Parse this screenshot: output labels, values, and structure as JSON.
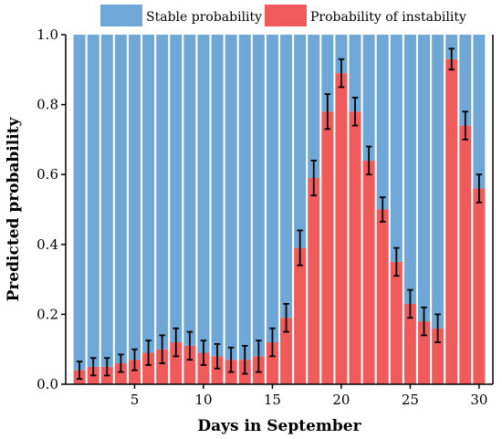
{
  "chart_data": {
    "type": "bar",
    "stacked": true,
    "xlabel": "Days in September",
    "ylabel": "Predicted probability",
    "ylim": [
      0,
      1.0
    ],
    "xlim": [
      0,
      31
    ],
    "xticks": [
      5,
      10,
      15,
      20,
      25,
      30
    ],
    "yticks": [
      0.0,
      0.2,
      0.4,
      0.6,
      0.8,
      1.0
    ],
    "ytick_labels": [
      "0.0",
      "0.2",
      "0.4",
      "0.6",
      "0.8",
      "1.0"
    ],
    "legend_placement": "top",
    "grid": false,
    "x": [
      1,
      2,
      3,
      4,
      5,
      6,
      7,
      8,
      9,
      10,
      11,
      12,
      13,
      14,
      15,
      16,
      17,
      18,
      19,
      20,
      21,
      22,
      23,
      24,
      25,
      26,
      27,
      28,
      29,
      30
    ],
    "series": [
      {
        "name": "Probability of instability",
        "color": "#ef5b5b",
        "values": [
          0.04,
          0.05,
          0.05,
          0.06,
          0.07,
          0.09,
          0.1,
          0.12,
          0.11,
          0.09,
          0.08,
          0.07,
          0.07,
          0.08,
          0.12,
          0.19,
          0.39,
          0.59,
          0.78,
          0.89,
          0.78,
          0.64,
          0.5,
          0.35,
          0.23,
          0.18,
          0.16,
          0.93,
          0.74,
          0.56
        ],
        "error": [
          0.025,
          0.025,
          0.025,
          0.025,
          0.03,
          0.035,
          0.04,
          0.04,
          0.04,
          0.035,
          0.035,
          0.035,
          0.04,
          0.045,
          0.04,
          0.04,
          0.05,
          0.05,
          0.05,
          0.04,
          0.04,
          0.04,
          0.035,
          0.04,
          0.04,
          0.04,
          0.04,
          0.03,
          0.04,
          0.04
        ]
      },
      {
        "name": "Stable probability",
        "color": "#6fa8d6",
        "values": [
          0.96,
          0.95,
          0.95,
          0.94,
          0.93,
          0.91,
          0.9,
          0.88,
          0.89,
          0.91,
          0.92,
          0.93,
          0.93,
          0.92,
          0.88,
          0.81,
          0.61,
          0.41,
          0.22,
          0.11,
          0.22,
          0.36,
          0.5,
          0.65,
          0.77,
          0.82,
          0.84,
          0.07,
          0.26,
          0.44
        ]
      }
    ]
  }
}
